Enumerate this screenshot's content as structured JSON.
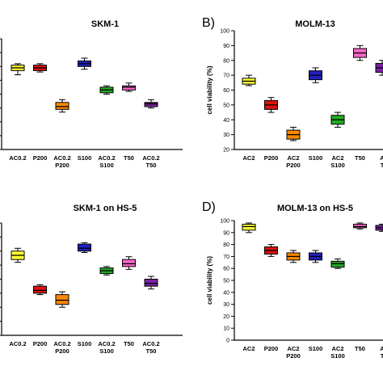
{
  "chart_data": [
    {
      "type": "box",
      "letter": "",
      "title": "SKM-1",
      "ylabel": "",
      "ylim": [
        20,
        100
      ],
      "yticks": [],
      "categories": [
        [
          "AC0.2"
        ],
        [
          "P200"
        ],
        [
          "AC0.2",
          "P200"
        ],
        [
          "S100"
        ],
        [
          "AC0.2",
          "S100"
        ],
        [
          "T50"
        ],
        [
          "AC0.2",
          "T50"
        ]
      ],
      "colors": [
        "#ffff33",
        "#dd1111",
        "#ff8800",
        "#2020c0",
        "#22aa22",
        "#ff66cc",
        "#7a1fa2"
      ],
      "boxes": [
        {
          "min": 74,
          "q1": 77,
          "median": 79,
          "q3": 81,
          "max": 82
        },
        {
          "min": 76,
          "q1": 77,
          "median": 79,
          "q3": 81,
          "max": 82
        },
        {
          "min": 47,
          "q1": 49,
          "median": 51,
          "q3": 54,
          "max": 56
        },
        {
          "min": 78,
          "q1": 80,
          "median": 82,
          "q3": 84,
          "max": 86
        },
        {
          "min": 60,
          "q1": 61,
          "median": 63,
          "q3": 65,
          "max": 66
        },
        {
          "min": 62,
          "q1": 63,
          "median": 65,
          "q3": 66,
          "max": 68
        },
        {
          "min": 50,
          "q1": 51,
          "median": 53,
          "q3": 54,
          "max": 56
        }
      ]
    },
    {
      "type": "box",
      "letter": "B)",
      "title": "MOLM-13",
      "ylabel": "cell viability (%)",
      "ylim": [
        20,
        100
      ],
      "yticks": [
        20,
        30,
        40,
        50,
        60,
        70,
        80,
        90,
        100
      ],
      "categories": [
        [
          "AC2"
        ],
        [
          "P200"
        ],
        [
          "AC2",
          "P200"
        ],
        [
          "S100"
        ],
        [
          "AC2",
          "S100"
        ],
        [
          "T50"
        ],
        [
          "A",
          "T"
        ]
      ],
      "colors": [
        "#ffff33",
        "#dd1111",
        "#ff8800",
        "#2020c0",
        "#22aa22",
        "#ff66cc",
        "#7a1fa2"
      ],
      "boxes": [
        {
          "min": 63,
          "q1": 64,
          "median": 66,
          "q3": 68,
          "max": 70
        },
        {
          "min": 45,
          "q1": 47,
          "median": 50,
          "q3": 53,
          "max": 55
        },
        {
          "min": 26,
          "q1": 27,
          "median": 30,
          "q3": 33,
          "max": 35
        },
        {
          "min": 65,
          "q1": 67,
          "median": 70,
          "q3": 73,
          "max": 75
        },
        {
          "min": 35,
          "q1": 37,
          "median": 40,
          "q3": 43,
          "max": 45
        },
        {
          "min": 80,
          "q1": 82,
          "median": 85,
          "q3": 88,
          "max": 90
        },
        {
          "min": 70,
          "q1": 72,
          "median": 75,
          "q3": 78,
          "max": 80
        }
      ]
    },
    {
      "type": "box",
      "letter": "",
      "title": "SKM-1 on HS-5",
      "ylabel": "",
      "ylim": [
        20,
        100
      ],
      "yticks": [],
      "categories": [
        [
          "AC0.2"
        ],
        [
          "P200"
        ],
        [
          "AC0.2",
          "P200"
        ],
        [
          "S100"
        ],
        [
          "AC0.2",
          "S100"
        ],
        [
          "T50"
        ],
        [
          "AC0.2",
          "T50"
        ]
      ],
      "colors": [
        "#ffff33",
        "#dd1111",
        "#ff8800",
        "#2020c0",
        "#22aa22",
        "#ff66cc",
        "#7a1fa2"
      ],
      "boxes": [
        {
          "min": 72,
          "q1": 74,
          "median": 77,
          "q3": 80,
          "max": 82
        },
        {
          "min": 49,
          "q1": 50,
          "median": 52,
          "q3": 55,
          "max": 56
        },
        {
          "min": 40,
          "q1": 42,
          "median": 45,
          "q3": 49,
          "max": 51
        },
        {
          "min": 79,
          "q1": 80,
          "median": 82,
          "q3": 85,
          "max": 86
        },
        {
          "min": 63,
          "q1": 64,
          "median": 66,
          "q3": 68,
          "max": 69
        },
        {
          "min": 67,
          "q1": 69,
          "median": 71,
          "q3": 74,
          "max": 76
        },
        {
          "min": 53,
          "q1": 55,
          "median": 57,
          "q3": 60,
          "max": 62
        }
      ]
    },
    {
      "type": "box",
      "letter": "D)",
      "title": "MOLM-13 on HS-5",
      "ylabel": "cell viability (%)",
      "ylim": [
        0,
        100
      ],
      "yticks": [
        0,
        10,
        20,
        30,
        40,
        50,
        60,
        70,
        80,
        90,
        100
      ],
      "categories": [
        [
          "AC2"
        ],
        [
          "P200"
        ],
        [
          "AC2",
          "P200"
        ],
        [
          "S100"
        ],
        [
          "AC2",
          "S100"
        ],
        [
          "T50"
        ],
        [
          "A",
          "T"
        ]
      ],
      "colors": [
        "#ffff33",
        "#dd1111",
        "#ff8800",
        "#2020c0",
        "#22aa22",
        "#ff66cc",
        "#7a1fa2"
      ],
      "boxes": [
        {
          "min": 90,
          "q1": 92,
          "median": 95,
          "q3": 97,
          "max": 98
        },
        {
          "min": 70,
          "q1": 72,
          "median": 75,
          "q3": 78,
          "max": 80
        },
        {
          "min": 65,
          "q1": 67,
          "median": 70,
          "q3": 73,
          "max": 75
        },
        {
          "min": 65,
          "q1": 67,
          "median": 70,
          "q3": 73,
          "max": 75
        },
        {
          "min": 60,
          "q1": 61,
          "median": 64,
          "q3": 66,
          "max": 68
        },
        {
          "min": 93,
          "q1": 94,
          "median": 95,
          "q3": 97,
          "max": 98
        },
        {
          "min": 91,
          "q1": 92,
          "median": 94,
          "q3": 96,
          "max": 97
        }
      ]
    }
  ]
}
